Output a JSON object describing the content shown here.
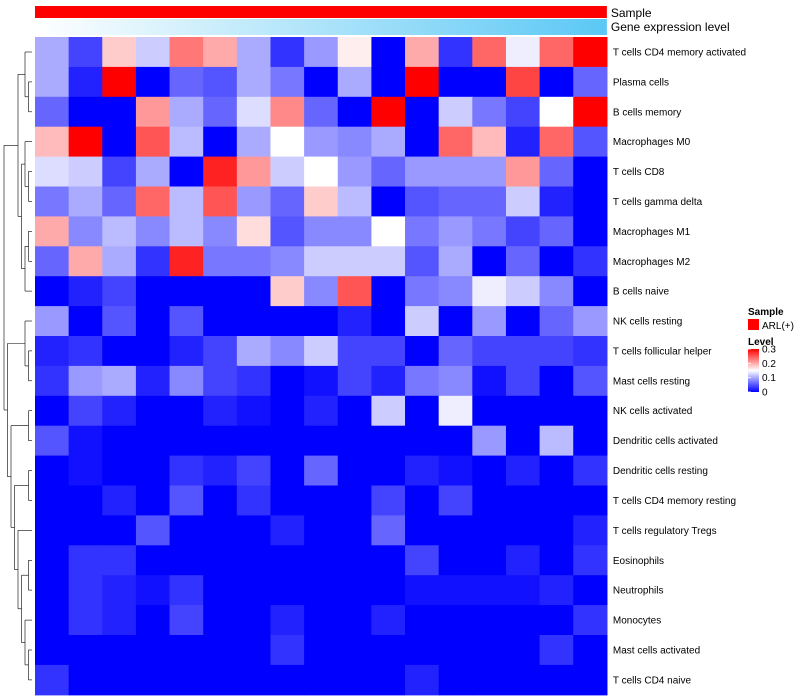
{
  "chart_data": {
    "type": "heatmap",
    "title": "",
    "columns_count": 17,
    "annotations": [
      {
        "name": "Sample",
        "color": "#ff0000"
      },
      {
        "name": "Gene expression level",
        "gradient": [
          "#ffffff",
          "#5bc8f5"
        ]
      }
    ],
    "rows": [
      "T cells CD4 memory activated",
      "Plasma cells",
      "B cells memory",
      "Macrophages M0",
      "T cells CD8",
      "T cells gamma delta",
      "Macrophages M1",
      "Macrophages M2",
      "B cells naive",
      "NK cells resting",
      "T cells follicular helper",
      "Mast cells resting",
      "NK cells activated",
      "Dendritic cells activated",
      "Dendritic cells resting",
      "T cells CD4 memory resting",
      "T cells regulatory  Tregs",
      "Eosinophils",
      "Neutrophils",
      "Monocytes",
      "Mast cells activated",
      "T cells CD4 naive"
    ],
    "values": [
      [
        0.1,
        0.04,
        0.18,
        0.12,
        0.23,
        0.2,
        0.1,
        0.03,
        0.09,
        0.16,
        0.0,
        0.2,
        0.03,
        0.24,
        0.14,
        0.24,
        0.3
      ],
      [
        0.1,
        0.02,
        0.3,
        0.0,
        0.06,
        0.05,
        0.1,
        0.07,
        0.0,
        0.1,
        0.0,
        0.3,
        0.0,
        0.0,
        0.26,
        0.0,
        0.06
      ],
      [
        0.06,
        0.0,
        0.0,
        0.21,
        0.1,
        0.06,
        0.13,
        0.22,
        0.06,
        0.0,
        0.3,
        0.0,
        0.12,
        0.07,
        0.04,
        0.15,
        0.3
      ],
      [
        0.19,
        0.3,
        0.0,
        0.25,
        0.11,
        0.0,
        0.1,
        0.15,
        0.09,
        0.08,
        0.1,
        0.0,
        0.24,
        0.19,
        0.02,
        0.24,
        0.05
      ],
      [
        0.13,
        0.12,
        0.04,
        0.1,
        0.0,
        0.28,
        0.21,
        0.12,
        0.15,
        0.09,
        0.06,
        0.09,
        0.09,
        0.09,
        0.21,
        0.06,
        0.0
      ],
      [
        0.07,
        0.1,
        0.06,
        0.24,
        0.11,
        0.25,
        0.09,
        0.06,
        0.18,
        0.11,
        0.0,
        0.05,
        0.06,
        0.06,
        0.12,
        0.02,
        0.0
      ],
      [
        0.2,
        0.08,
        0.11,
        0.08,
        0.11,
        0.08,
        0.17,
        0.05,
        0.08,
        0.08,
        0.15,
        0.07,
        0.09,
        0.07,
        0.04,
        0.06,
        0.0
      ],
      [
        0.06,
        0.2,
        0.1,
        0.03,
        0.28,
        0.07,
        0.07,
        0.08,
        0.12,
        0.12,
        0.12,
        0.05,
        0.1,
        0.0,
        0.06,
        0.0,
        0.03
      ],
      [
        0.0,
        0.02,
        0.04,
        0.0,
        0.0,
        0.0,
        0.0,
        0.18,
        0.08,
        0.25,
        0.0,
        0.07,
        0.08,
        0.14,
        0.12,
        0.08,
        0.0
      ],
      [
        0.09,
        0.0,
        0.05,
        0.0,
        0.05,
        0.0,
        0.0,
        0.0,
        0.0,
        0.02,
        0.0,
        0.12,
        0.0,
        0.09,
        0.0,
        0.06,
        0.09
      ],
      [
        0.02,
        0.03,
        0.0,
        0.0,
        0.02,
        0.04,
        0.1,
        0.08,
        0.12,
        0.04,
        0.04,
        0.0,
        0.06,
        0.04,
        0.04,
        0.04,
        0.03
      ],
      [
        0.03,
        0.09,
        0.1,
        0.02,
        0.08,
        0.04,
        0.03,
        0.0,
        0.01,
        0.04,
        0.02,
        0.07,
        0.08,
        0.01,
        0.04,
        0.0,
        0.05
      ],
      [
        0.0,
        0.04,
        0.02,
        0.0,
        0.0,
        0.02,
        0.01,
        0.0,
        0.02,
        0.0,
        0.12,
        0.0,
        0.14,
        0.0,
        0.0,
        0.0,
        0.0
      ],
      [
        0.05,
        0.01,
        0.0,
        0.0,
        0.0,
        0.0,
        0.0,
        0.0,
        0.0,
        0.0,
        0.0,
        0.0,
        0.0,
        0.09,
        0.0,
        0.11,
        0.0
      ],
      [
        0.0,
        0.01,
        0.0,
        0.0,
        0.03,
        0.02,
        0.04,
        0.0,
        0.06,
        0.0,
        0.0,
        0.02,
        0.01,
        0.0,
        0.02,
        0.0,
        0.03
      ],
      [
        0.0,
        0.0,
        0.02,
        0.0,
        0.05,
        0.0,
        0.03,
        0.0,
        0.0,
        0.0,
        0.04,
        0.0,
        0.04,
        0.0,
        0.0,
        0.0,
        0.0
      ],
      [
        0.0,
        0.0,
        0.0,
        0.05,
        0.0,
        0.0,
        0.0,
        0.02,
        0.0,
        0.0,
        0.06,
        0.0,
        0.0,
        0.0,
        0.0,
        0.0,
        0.02
      ],
      [
        0.0,
        0.03,
        0.03,
        0.0,
        0.0,
        0.0,
        0.0,
        0.0,
        0.0,
        0.0,
        0.0,
        0.04,
        0.0,
        0.0,
        0.02,
        0.0,
        0.03
      ],
      [
        0.0,
        0.03,
        0.02,
        0.01,
        0.03,
        0.0,
        0.0,
        0.0,
        0.0,
        0.0,
        0.0,
        0.01,
        0.01,
        0.01,
        0.01,
        0.02,
        0.0
      ],
      [
        0.0,
        0.03,
        0.02,
        0.0,
        0.04,
        0.0,
        0.0,
        0.02,
        0.0,
        0.0,
        0.02,
        0.0,
        0.0,
        0.0,
        0.0,
        0.0,
        0.03
      ],
      [
        0.0,
        0.0,
        0.0,
        0.0,
        0.0,
        0.0,
        0.0,
        0.03,
        0.0,
        0.0,
        0.0,
        0.0,
        0.0,
        0.0,
        0.0,
        0.03,
        0.0
      ],
      [
        0.03,
        0.0,
        0.0,
        0.0,
        0.0,
        0.0,
        0.0,
        0.0,
        0.0,
        0.0,
        0.0,
        0.02,
        0.0,
        0.0,
        0.0,
        0.0,
        0.0
      ]
    ],
    "color_scale": {
      "min": 0,
      "max": 0.3,
      "low": "#0000ff",
      "mid_value": 0.15,
      "mid": "#ffffff",
      "high": "#ff0000"
    },
    "legend": {
      "sample_title": "Sample",
      "sample_items": [
        {
          "label": "ARL(+)",
          "color": "#ff0000"
        }
      ],
      "level_title": "Level",
      "level_ticks": [
        "0.3",
        "0.2",
        "0.1",
        "0"
      ],
      "level_tick_values": [
        0.3,
        0.2,
        0.1,
        0
      ]
    },
    "dendrogram": {
      "note": "row clustering tree (leaf indices refer to rows)",
      "tree": [
        [
          [
            0,
            [
              1,
              2
            ]
          ],
          [
            [
              3,
              [
                4,
                5
              ]
            ],
            [
              [
                6,
                7
              ],
              8
            ]
          ]
        ],
        [
          [
            9,
            [
              10,
              11
            ]
          ],
          [
            [
              12,
              13
            ],
            [
              [
                14,
                15
              ],
              [
                16,
                [
                  [
                    17,
                    18
                  ],
                  [
                    19,
                    [
                      20,
                      21
                    ]
                  ]
                ]
              ]
            ]
          ]
        ]
      ]
    }
  }
}
